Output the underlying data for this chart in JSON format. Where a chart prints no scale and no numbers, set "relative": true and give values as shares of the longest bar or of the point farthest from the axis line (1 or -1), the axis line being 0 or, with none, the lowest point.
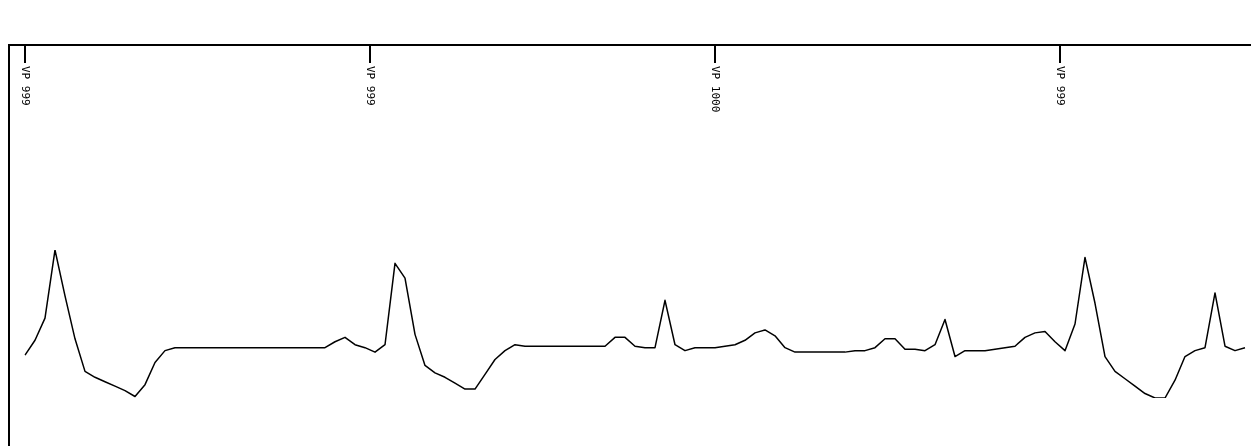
{
  "chart_data": {
    "type": "line",
    "relative": true,
    "color": "#000000",
    "marker": "none",
    "legend": false,
    "annotations": [
      "VP 999",
      "VP 999",
      "VP 1000",
      "VP 999"
    ],
    "categories": [
      null,
      null,
      null,
      null,
      null,
      null,
      null,
      null,
      null,
      null,
      null,
      null,
      null,
      null,
      null,
      null,
      null,
      null,
      null,
      null,
      null,
      null,
      null,
      null,
      null,
      null,
      null,
      null,
      null,
      null,
      null,
      null,
      null,
      null,
      null,
      null,
      null,
      null,
      null,
      null,
      null,
      null,
      null,
      null,
      null,
      null,
      null,
      null,
      null,
      null,
      null,
      null,
      null,
      null,
      null,
      null,
      null,
      null,
      null,
      null,
      null,
      null,
      null,
      null,
      null,
      null,
      null,
      null,
      null,
      null,
      null,
      null,
      null,
      null,
      null,
      null,
      null,
      null,
      null,
      null,
      null,
      null,
      null,
      null,
      null,
      null,
      null,
      null,
      null,
      null,
      null,
      null,
      null,
      null,
      null,
      null,
      null,
      null,
      null,
      null,
      null,
      null,
      null,
      null,
      null,
      null,
      null,
      null,
      null,
      null,
      null,
      null,
      null,
      null,
      null,
      null,
      null,
      null,
      null,
      null,
      null,
      null,
      null
    ],
    "values": [
      0.29,
      0.39,
      0.54,
      1,
      0.69,
      0.4,
      0.18,
      0.14,
      0.11,
      0.08,
      0.05,
      0.01,
      0.09,
      0.24,
      0.32,
      0.34,
      0.34,
      0.34,
      0.34,
      0.34,
      0.34,
      0.34,
      0.34,
      0.34,
      0.34,
      0.34,
      0.34,
      0.34,
      0.34,
      0.34,
      0.34,
      0.38,
      0.41,
      0.36,
      0.34,
      0.31,
      0.36,
      0.91,
      0.81,
      0.43,
      0.22,
      0.17,
      0.14,
      0.1,
      0.06,
      0.06,
      0.16,
      0.26,
      0.32,
      0.36,
      0.35,
      0.35,
      0.35,
      0.35,
      0.35,
      0.35,
      0.35,
      0.35,
      0.35,
      0.41,
      0.41,
      0.35,
      0.34,
      0.34,
      0.66,
      0.36,
      0.32,
      0.34,
      0.34,
      0.34,
      0.35,
      0.36,
      0.39,
      0.44,
      0.46,
      0.42,
      0.34,
      0.31,
      0.31,
      0.31,
      0.31,
      0.31,
      0.31,
      0.32,
      0.32,
      0.34,
      0.4,
      0.4,
      0.33,
      0.33,
      0.32,
      0.36,
      0.53,
      0.28,
      0.32,
      0.32,
      0.32,
      0.33,
      0.34,
      0.35,
      0.41,
      0.44,
      0.45,
      0.38,
      0.32,
      0.5,
      0.95,
      0.64,
      0.28,
      0.18,
      0.13,
      0.08,
      0.03,
      0,
      0,
      0.12,
      0.28,
      0.32,
      0.34,
      0.71,
      0.35,
      0.32,
      0.34
    ]
  }
}
